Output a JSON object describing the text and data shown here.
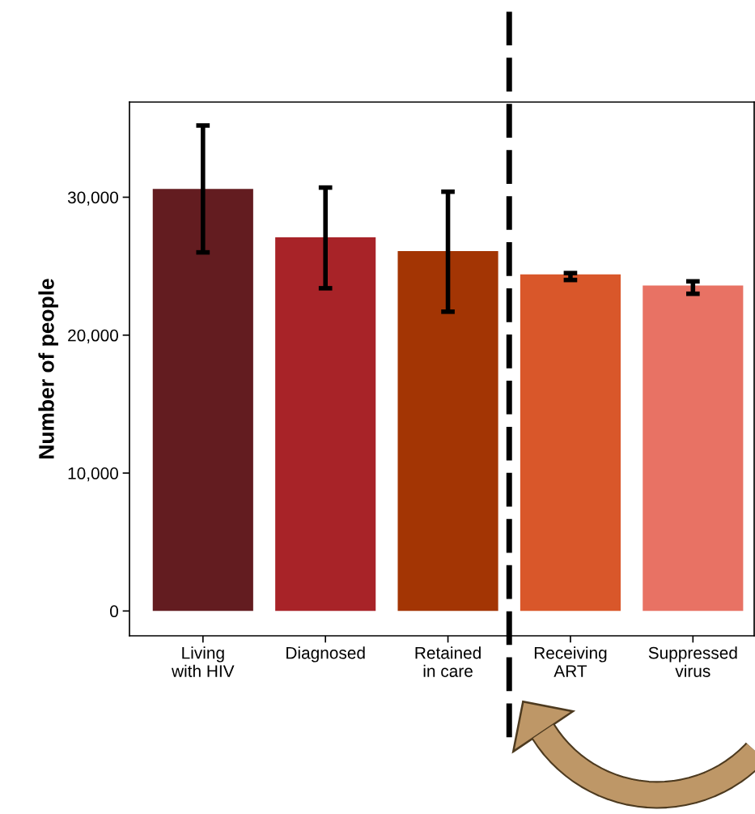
{
  "chart_data": {
    "type": "bar",
    "ylabel": "Number of people",
    "categories": [
      "Living\nwith HIV",
      "Diagnosed",
      "Retained\nin care",
      "Receiving\nART",
      "Suppressed\nvirus"
    ],
    "values": [
      30600,
      27100,
      26100,
      24400,
      23600
    ],
    "colors": [
      "#631c20",
      "#a82328",
      "#a33504",
      "#d9572a",
      "#e87264"
    ],
    "errors": [
      [
        26000,
        35200
      ],
      [
        23400,
        30700
      ],
      [
        21700,
        30400
      ],
      [
        24000,
        24500
      ],
      [
        23000,
        23900
      ]
    ],
    "ylim": [
      -1800,
      36900
    ],
    "yticks": [
      {
        "value": 0,
        "label": "0"
      },
      {
        "value": 10000,
        "label": "10,000"
      },
      {
        "value": 20000,
        "label": "20,000"
      },
      {
        "value": 30000,
        "label": "30,000"
      }
    ],
    "grid": false,
    "legend": false
  }
}
